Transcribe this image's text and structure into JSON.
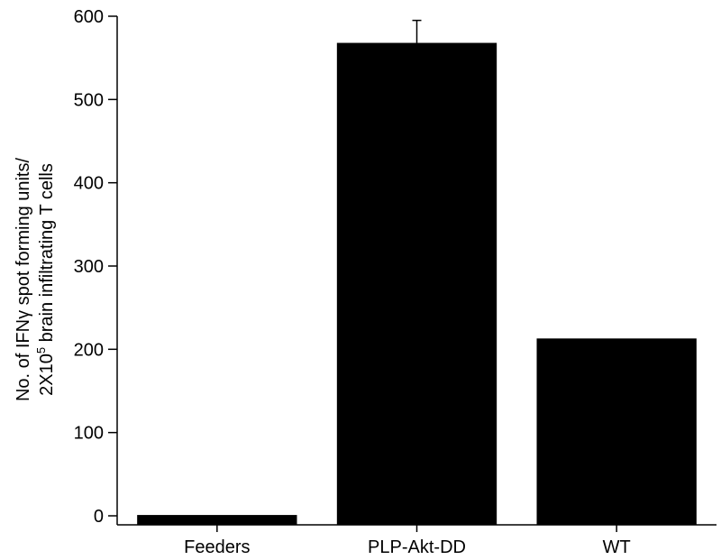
{
  "chart_data": {
    "type": "bar",
    "categories": [
      "Feeders",
      "PLP-Akt-DD",
      "WT"
    ],
    "values": [
      1,
      568,
      213
    ],
    "error_bars": [
      null,
      27,
      null
    ],
    "ylabel_line1": "No. of IFNγ spot forming units/",
    "ylabel_line2_pre": "2X10",
    "ylabel_line2_sup": "5",
    "ylabel_line2_post": " brain infiltrating T cells",
    "ylim": [
      0,
      600
    ],
    "yticks": [
      0,
      100,
      200,
      300,
      400,
      500,
      600
    ],
    "grid": false,
    "colors": {
      "bar": "#000000",
      "axis": "#000000"
    }
  }
}
